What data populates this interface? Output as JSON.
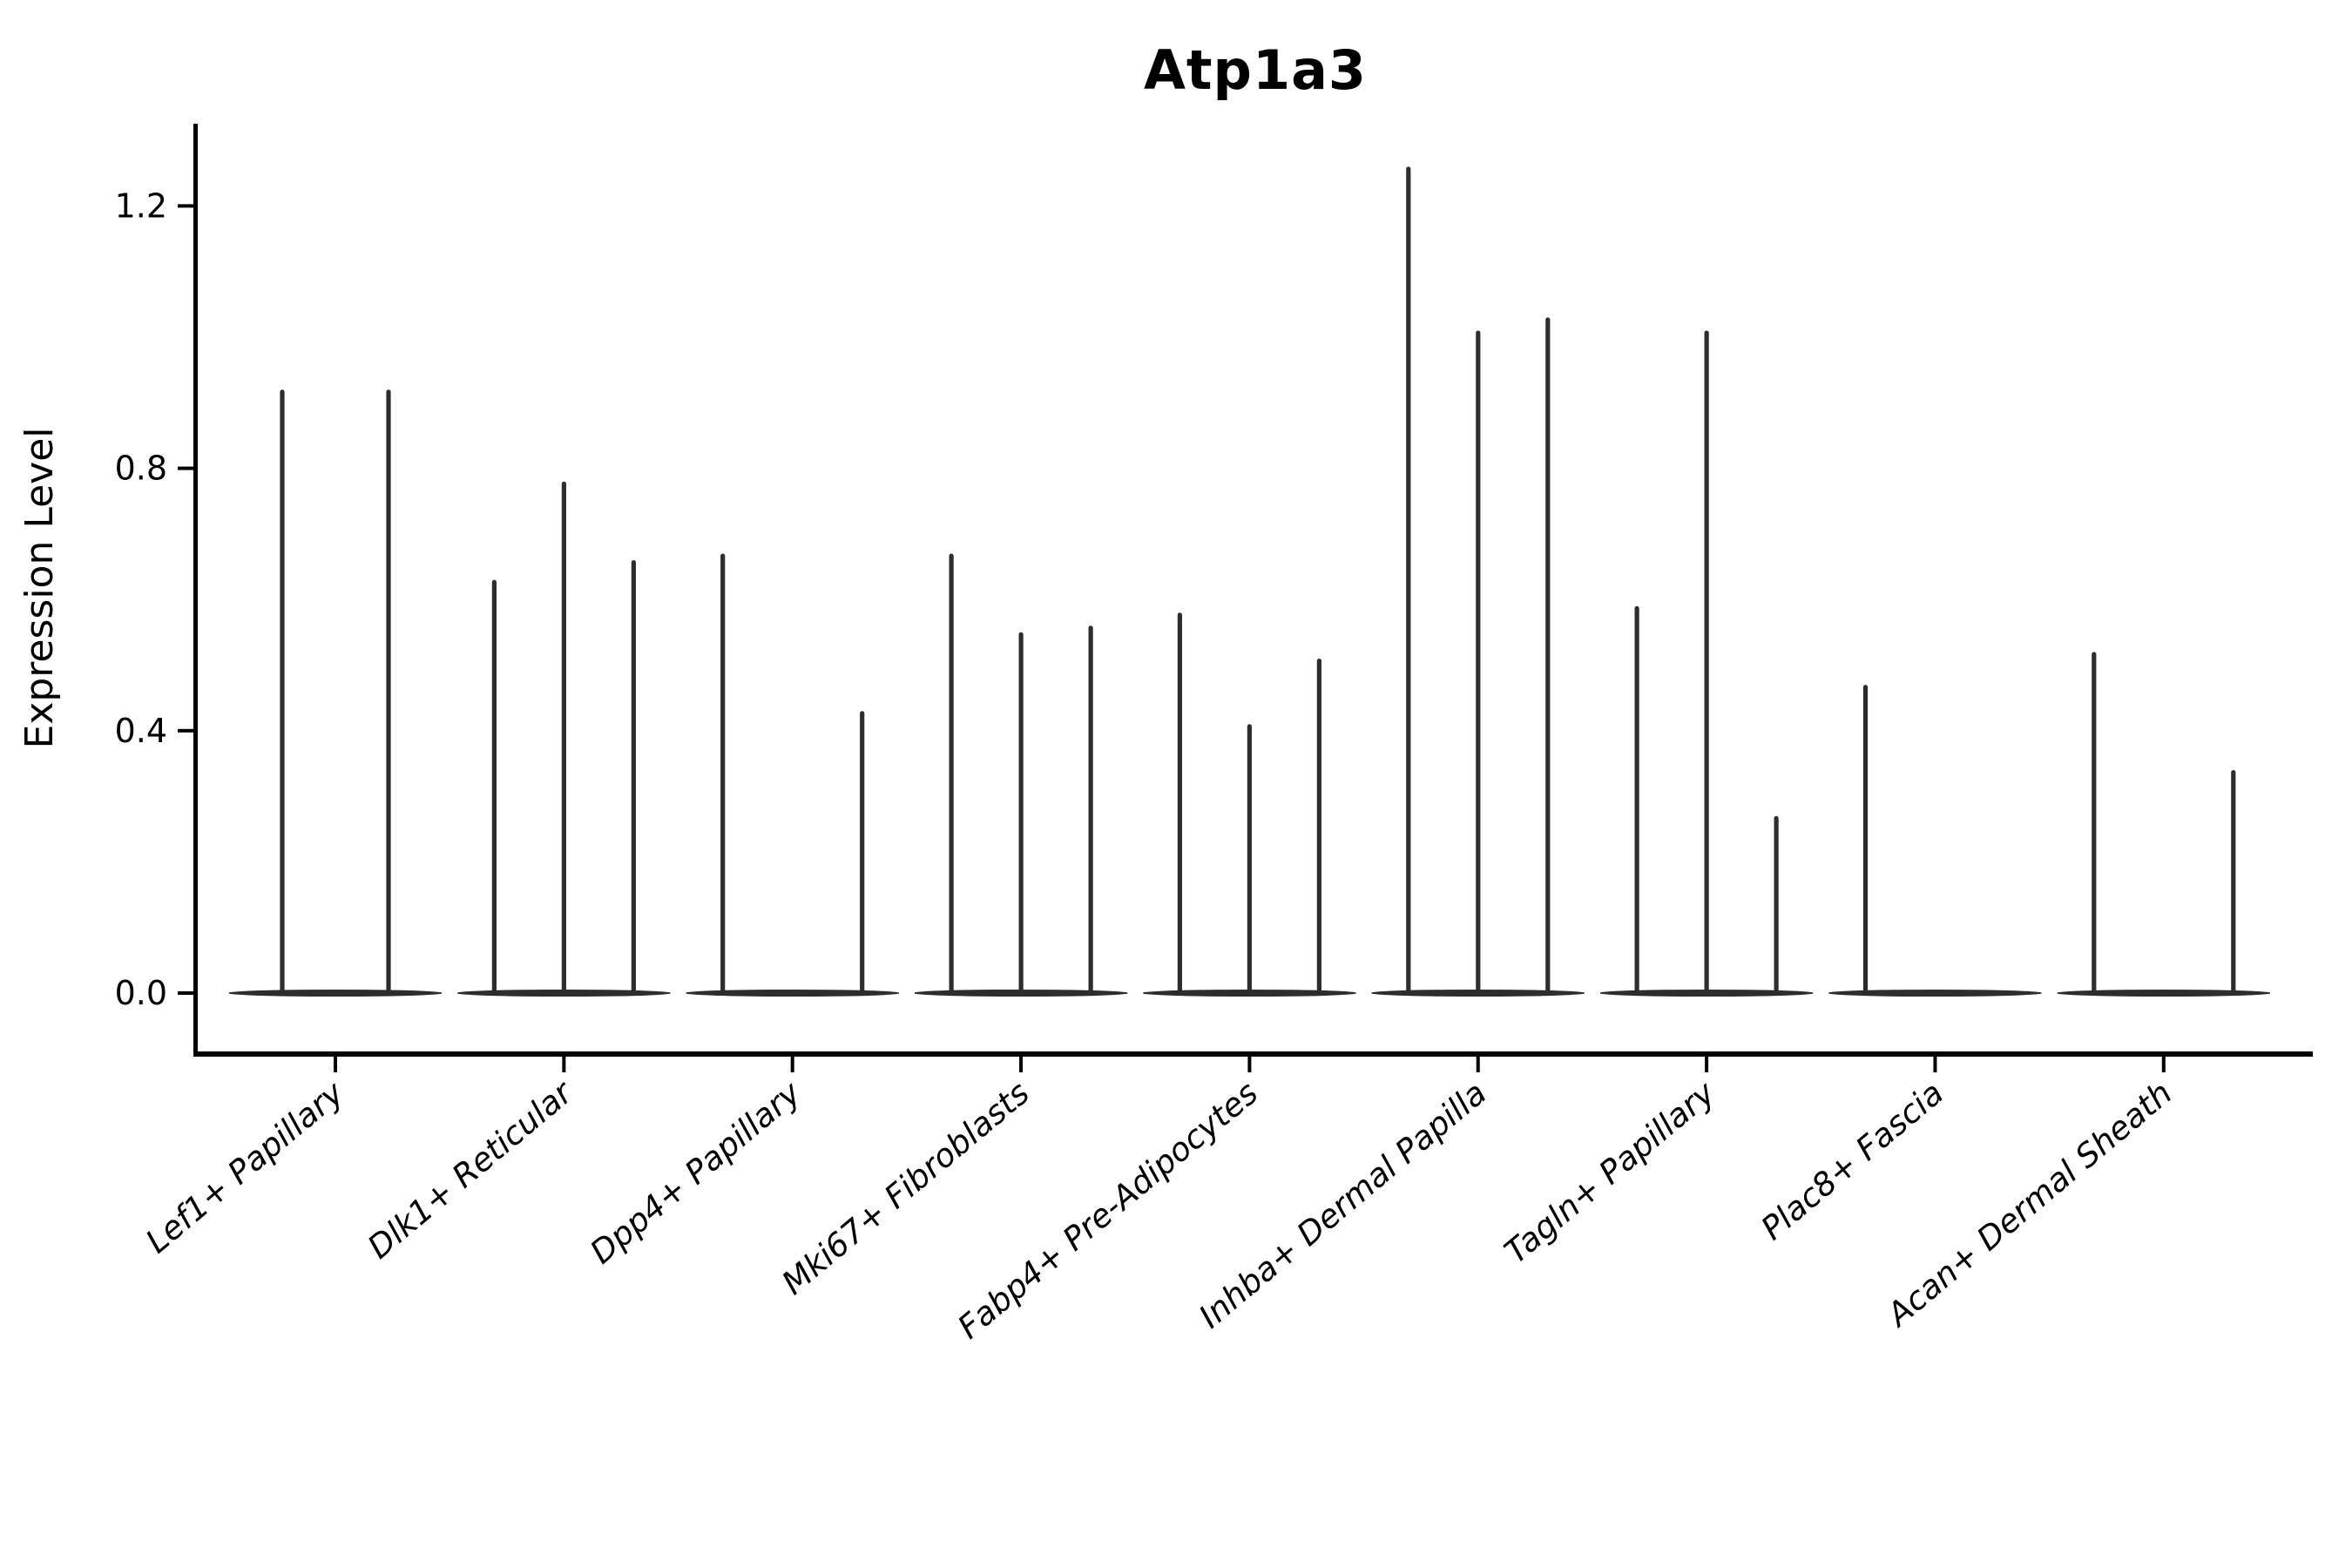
{
  "title": "Atp1a3",
  "axes": {
    "y_label": "Expression Level",
    "y_tick_labels": [
      "0.0",
      "0.4",
      "0.8",
      "1.2"
    ]
  },
  "chart_data": {
    "type": "violin",
    "title": "Atp1a3",
    "ylabel": "Expression Level",
    "xlabel": "",
    "yticks": [
      0.0,
      0.4,
      0.8,
      1.2
    ],
    "ylim": [
      -0.09,
      1.32
    ],
    "grid": false,
    "legend": "none",
    "style": "sparse split violins: wide flat density base at 0 with one thin spike per sub-violin reaching its max expression",
    "categories": [
      "Lef1+ Papillary",
      "Dlk1+ Reticular",
      "Dpp4+ Papillary",
      "Mki67+ Fibroblasts",
      "Fabp4+ Pre-Adipocytes",
      "Inhba+ Dermal Papilla",
      "Tagln+ Papillary",
      "Plac8+ Fascia",
      "Acan+ Dermal Sheath"
    ],
    "groups": [
      {
        "category": "Lef1+ Papillary",
        "violins": [
          {
            "dx": -61,
            "max": 0.92
          },
          {
            "dx": 61,
            "max": 0.92
          }
        ]
      },
      {
        "category": "Dlk1+ Reticular",
        "violins": [
          {
            "dx": -80,
            "max": 0.63
          },
          {
            "dx": 0,
            "max": 0.78
          },
          {
            "dx": 80,
            "max": 0.66
          }
        ]
      },
      {
        "category": "Dpp4+ Papillary",
        "violins": [
          {
            "dx": -80,
            "max": 0.67
          },
          {
            "dx": 80,
            "max": 0.43
          }
        ]
      },
      {
        "category": "Mki67+ Fibroblasts",
        "violins": [
          {
            "dx": -80,
            "max": 0.67
          },
          {
            "dx": 0,
            "max": 0.55
          },
          {
            "dx": 80,
            "max": 0.56
          }
        ]
      },
      {
        "category": "Fabp4+ Pre-Adipocytes",
        "violins": [
          {
            "dx": -80,
            "max": 0.58
          },
          {
            "dx": 0,
            "max": 0.41
          },
          {
            "dx": 80,
            "max": 0.51
          }
        ]
      },
      {
        "category": "Inhba+ Dermal Papilla",
        "violins": [
          {
            "dx": -80,
            "max": 1.26
          },
          {
            "dx": 0,
            "max": 1.01
          },
          {
            "dx": 80,
            "max": 1.03
          }
        ]
      },
      {
        "category": "Tagln+ Papillary",
        "violins": [
          {
            "dx": -80,
            "max": 0.59
          },
          {
            "dx": 0,
            "max": 1.01
          },
          {
            "dx": 80,
            "max": 0.27
          }
        ]
      },
      {
        "category": "Plac8+ Fascia",
        "violins": [
          {
            "dx": -80,
            "max": 0.47
          }
        ]
      },
      {
        "category": "Acan+ Dermal Sheath",
        "violins": [
          {
            "dx": -80,
            "max": 0.52
          },
          {
            "dx": 80,
            "max": 0.34
          }
        ]
      }
    ],
    "colors": {
      "violin": "#2d2d2d",
      "axis": "#000000",
      "text": "#000000",
      "background": "#ffffff"
    }
  }
}
